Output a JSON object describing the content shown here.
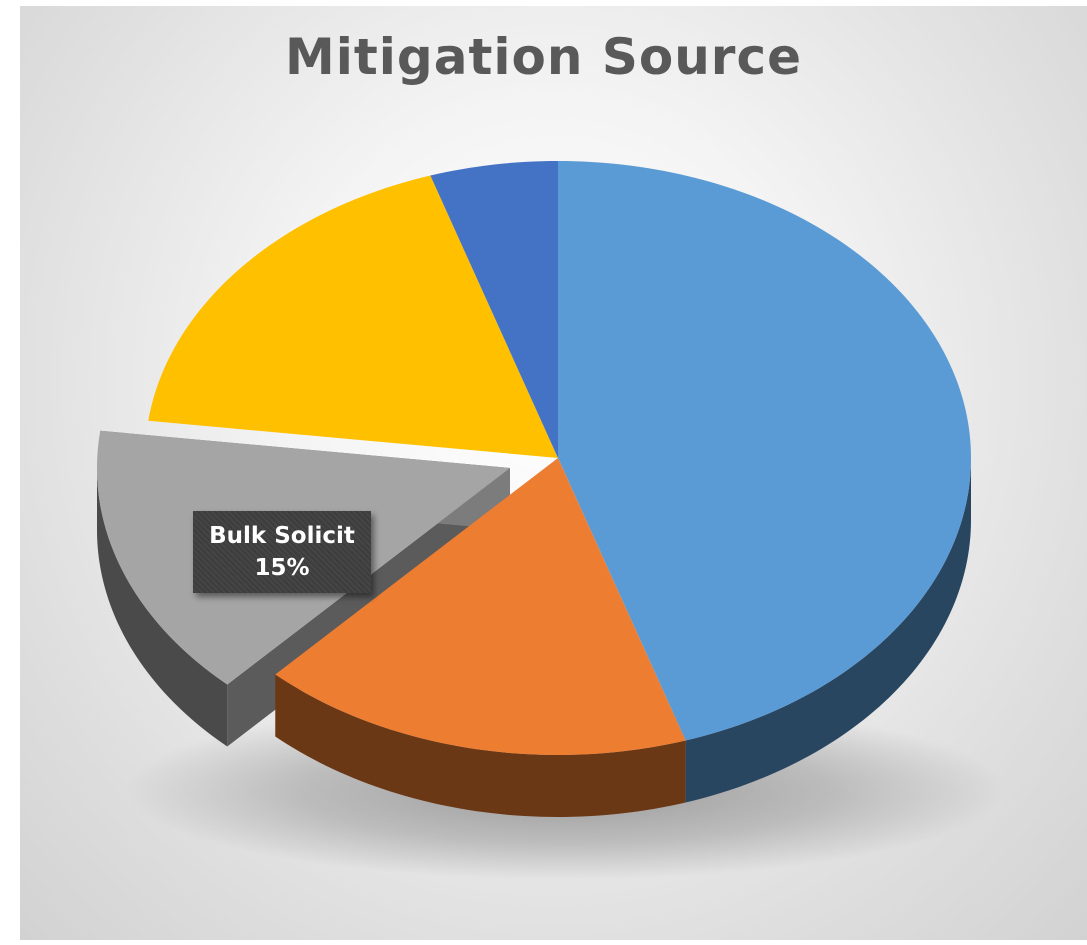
{
  "chart_data": {
    "type": "pie",
    "title": "Mitigation Source",
    "slices": [
      {
        "label": "",
        "value": 45,
        "color": "#5b9bd5"
      },
      {
        "label": "",
        "value": 17,
        "color": "#ed7d31"
      },
      {
        "label": "Bulk Solicit",
        "value": 15,
        "color": "#a5a5a5",
        "value_label": "15%",
        "exploded": true
      },
      {
        "label": "",
        "value": 18,
        "color": "#ffc000"
      },
      {
        "label": "",
        "value": 5,
        "color": "#4472c4"
      }
    ],
    "style": "3d-exploded",
    "legend": "none"
  }
}
